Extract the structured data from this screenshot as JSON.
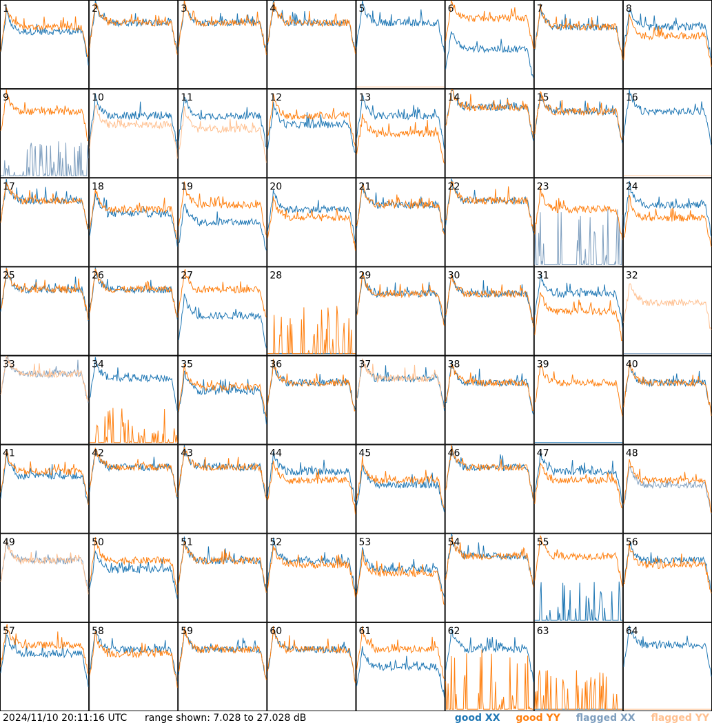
{
  "colors": {
    "good_xx": "#1f77b4",
    "good_yy": "#ff7f0e",
    "flagged_xx": "#7f9fbf",
    "flagged_yy": "#ffc090"
  },
  "footer": {
    "timestamp": "2024/11/10 20:11:16 UTC",
    "range": "range shown: 7.028 to 27.028 dB",
    "legend": {
      "good_xx": "good XX",
      "good_yy": "good YY",
      "flagged_xx": "flagged XX",
      "flagged_yy": "flagged YY"
    }
  },
  "chart_data": {
    "type": "line",
    "layout": "8x8 small multiples",
    "ylim": [
      7.028,
      27.028
    ],
    "yunit": "dB",
    "series_names": [
      "good XX",
      "good YY",
      "flagged XX",
      "flagged YY"
    ],
    "panels": [
      {
        "id": "1",
        "xx": "normal",
        "yy": "normal",
        "xx_level": 20,
        "yy_level": 21
      },
      {
        "id": "2",
        "xx": "normal",
        "yy": "normal",
        "xx_level": 22,
        "yy_level": 22
      },
      {
        "id": "3",
        "xx": "normal",
        "yy": "normal",
        "xx_level": 22,
        "yy_level": 22
      },
      {
        "id": "4",
        "xx": "normal",
        "yy": "normal",
        "xx_level": 22,
        "yy_level": 22
      },
      {
        "id": "5",
        "xx": "normal",
        "yy": "flagged_dead",
        "xx_level": 22,
        "yy_level": 8
      },
      {
        "id": "6",
        "xx": "normal",
        "yy": "normal",
        "xx_level": 16,
        "yy_level": 23
      },
      {
        "id": "7",
        "xx": "normal",
        "yy": "normal",
        "xx_level": 21,
        "yy_level": 21
      },
      {
        "id": "8",
        "xx": "normal",
        "yy": "normal",
        "xx_level": 21,
        "yy_level": 19
      },
      {
        "id": "9",
        "xx": "flagged_spiky",
        "yy": "normal",
        "xx_level": 9,
        "yy_level": 22
      },
      {
        "id": "10",
        "xx": "normal",
        "yy": "flagged",
        "xx_level": 21,
        "yy_level": 19
      },
      {
        "id": "11",
        "xx": "normal",
        "yy": "flagged",
        "xx_level": 21,
        "yy_level": 18
      },
      {
        "id": "12",
        "xx": "normal",
        "yy": "normal",
        "xx_level": 19,
        "yy_level": 21
      },
      {
        "id": "13",
        "xx": "normal",
        "yy": "normal",
        "xx_level": 21,
        "yy_level": 17
      },
      {
        "id": "14",
        "xx": "normal",
        "yy": "normal",
        "xx_level": 23,
        "yy_level": 23
      },
      {
        "id": "15",
        "xx": "normal",
        "yy": "normal",
        "xx_level": 22,
        "yy_level": 22
      },
      {
        "id": "16",
        "xx": "normal",
        "yy": "flagged_dead",
        "xx_level": 22,
        "yy_level": 8
      },
      {
        "id": "17",
        "xx": "normal",
        "yy": "normal",
        "xx_level": 22,
        "yy_level": 22
      },
      {
        "id": "18",
        "xx": "normal",
        "yy": "normal",
        "xx_level": 19,
        "yy_level": 20
      },
      {
        "id": "19",
        "xx": "normal",
        "yy": "normal",
        "xx_level": 17,
        "yy_level": 21
      },
      {
        "id": "20",
        "xx": "normal",
        "yy": "normal",
        "xx_level": 20,
        "yy_level": 18
      },
      {
        "id": "21",
        "xx": "normal",
        "yy": "normal",
        "xx_level": 21,
        "yy_level": 21
      },
      {
        "id": "22",
        "xx": "normal",
        "yy": "normal",
        "xx_level": 22,
        "yy_level": 22
      },
      {
        "id": "23",
        "xx": "flagged_spiky",
        "yy": "normal",
        "xx_level": 14,
        "yy_level": 20
      },
      {
        "id": "24",
        "xx": "normal",
        "yy": "normal",
        "xx_level": 21,
        "yy_level": 18
      },
      {
        "id": "25",
        "xx": "normal",
        "yy": "normal",
        "xx_level": 22,
        "yy_level": 22
      },
      {
        "id": "26",
        "xx": "normal",
        "yy": "normal",
        "xx_level": 22,
        "yy_level": 22
      },
      {
        "id": "27",
        "xx": "normal",
        "yy": "normal",
        "xx_level": 16,
        "yy_level": 22
      },
      {
        "id": "28",
        "xx": "dead",
        "yy": "spiky",
        "xx_level": 8,
        "yy_level": 12
      },
      {
        "id": "29",
        "xx": "normal",
        "yy": "normal",
        "xx_level": 21,
        "yy_level": 21
      },
      {
        "id": "30",
        "xx": "normal",
        "yy": "normal",
        "xx_level": 21,
        "yy_level": 21
      },
      {
        "id": "31",
        "xx": "normal",
        "yy": "normal",
        "xx_level": 21,
        "yy_level": 17
      },
      {
        "id": "32",
        "xx": "flagged_dead",
        "yy": "flagged",
        "xx_level": 8,
        "yy_level": 19
      },
      {
        "id": "33",
        "xx": "flagged",
        "yy": "flagged",
        "xx_level": 23,
        "yy_level": 23
      },
      {
        "id": "34",
        "xx": "normal",
        "yy": "spiky",
        "xx_level": 22,
        "yy_level": 9
      },
      {
        "id": "35",
        "xx": "normal",
        "yy": "normal",
        "xx_level": 19,
        "yy_level": 20
      },
      {
        "id": "36",
        "xx": "normal",
        "yy": "normal",
        "xx_level": 21,
        "yy_level": 21
      },
      {
        "id": "37",
        "xx": "normal",
        "yy": "flagged",
        "xx_level": 22,
        "yy_level": 22
      },
      {
        "id": "38",
        "xx": "normal",
        "yy": "normal",
        "xx_level": 21,
        "yy_level": 21
      },
      {
        "id": "39",
        "xx": "dead",
        "yy": "normal",
        "xx_level": 8,
        "yy_level": 21
      },
      {
        "id": "40",
        "xx": "normal",
        "yy": "normal",
        "xx_level": 21,
        "yy_level": 21
      },
      {
        "id": "41",
        "xx": "normal",
        "yy": "normal",
        "xx_level": 20,
        "yy_level": 21
      },
      {
        "id": "42",
        "xx": "normal",
        "yy": "normal",
        "xx_level": 22,
        "yy_level": 22
      },
      {
        "id": "43",
        "xx": "normal",
        "yy": "normal",
        "xx_level": 22,
        "yy_level": 22
      },
      {
        "id": "44",
        "xx": "normal",
        "yy": "normal",
        "xx_level": 21,
        "yy_level": 19
      },
      {
        "id": "45",
        "xx": "normal",
        "yy": "normal",
        "xx_level": 18,
        "yy_level": 19
      },
      {
        "id": "46",
        "xx": "normal",
        "yy": "normal",
        "xx_level": 22,
        "yy_level": 22
      },
      {
        "id": "47",
        "xx": "normal",
        "yy": "normal",
        "xx_level": 21,
        "yy_level": 19
      },
      {
        "id": "48",
        "xx": "flagged",
        "yy": "normal",
        "xx_level": 18,
        "yy_level": 19
      },
      {
        "id": "49",
        "xx": "flagged",
        "yy": "flagged",
        "xx_level": 21,
        "yy_level": 21
      },
      {
        "id": "50",
        "xx": "normal",
        "yy": "normal",
        "xx_level": 19,
        "yy_level": 21
      },
      {
        "id": "51",
        "xx": "normal",
        "yy": "normal",
        "xx_level": 21,
        "yy_level": 21
      },
      {
        "id": "52",
        "xx": "normal",
        "yy": "normal",
        "xx_level": 21,
        "yy_level": 20
      },
      {
        "id": "53",
        "xx": "normal",
        "yy": "normal",
        "xx_level": 19,
        "yy_level": 18
      },
      {
        "id": "54",
        "xx": "normal",
        "yy": "normal",
        "xx_level": 22,
        "yy_level": 22
      },
      {
        "id": "55",
        "xx": "spiky",
        "yy": "normal",
        "xx_level": 10,
        "yy_level": 22
      },
      {
        "id": "56",
        "xx": "normal",
        "yy": "normal",
        "xx_level": 21,
        "yy_level": 20
      },
      {
        "id": "57",
        "xx": "normal",
        "yy": "normal",
        "xx_level": 20,
        "yy_level": 22
      },
      {
        "id": "58",
        "xx": "normal",
        "yy": "normal",
        "xx_level": 21,
        "yy_level": 20
      },
      {
        "id": "59",
        "xx": "normal",
        "yy": "normal",
        "xx_level": 21,
        "yy_level": 21
      },
      {
        "id": "60",
        "xx": "normal",
        "yy": "normal",
        "xx_level": 21,
        "yy_level": 21
      },
      {
        "id": "61",
        "xx": "normal",
        "yy": "normal",
        "xx_level": 17,
        "yy_level": 21
      },
      {
        "id": "62",
        "xx": "normal",
        "yy": "spiky",
        "xx_level": 21,
        "yy_level": 15
      },
      {
        "id": "63",
        "xx": "dead",
        "yy": "spiky",
        "xx_level": 8,
        "yy_level": 10
      },
      {
        "id": "64",
        "xx": "normal",
        "yy": "flagged_dead",
        "xx_level": 22,
        "yy_level": 8
      }
    ]
  }
}
